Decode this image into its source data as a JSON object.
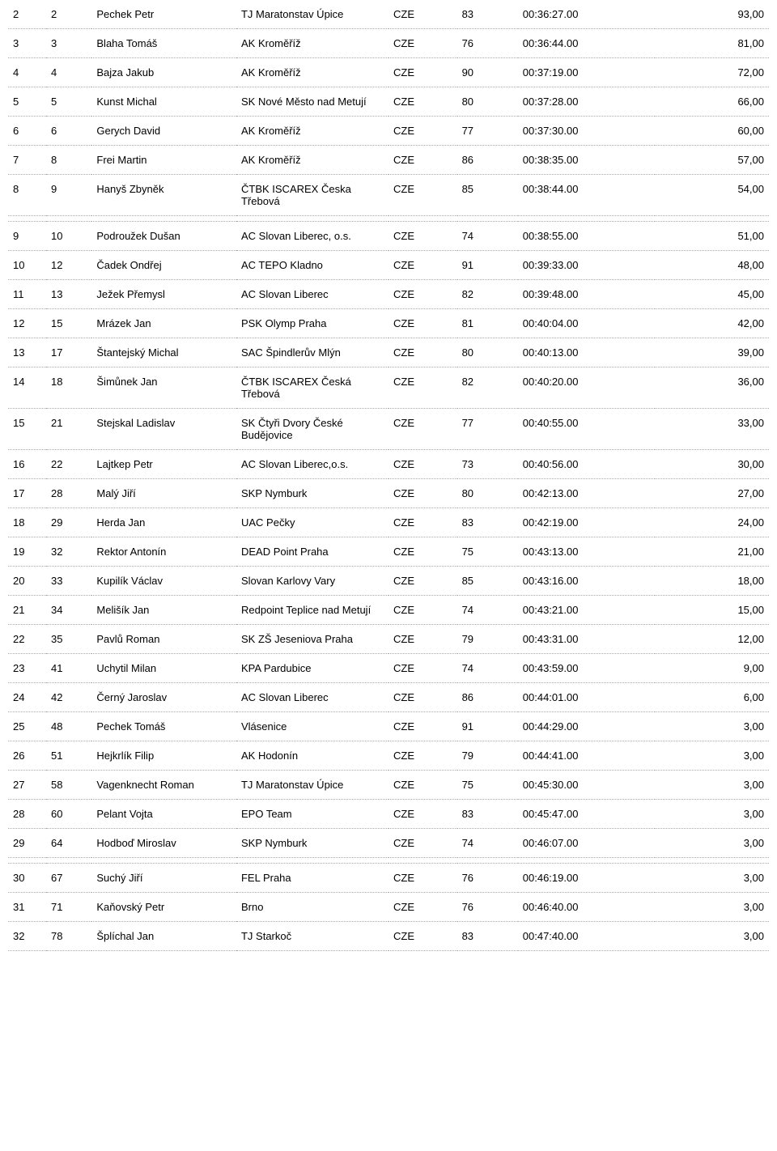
{
  "table": {
    "columns": [
      "pos",
      "num",
      "name",
      "team",
      "nat",
      "yr",
      "time",
      "pts"
    ],
    "rows": [
      {
        "pos": "2",
        "num": "2",
        "name": "Pechek Petr",
        "team": "TJ Maratonstav Úpice",
        "nat": "CZE",
        "yr": "83",
        "time": "00:36:27.00",
        "pts": "93,00"
      },
      {
        "pos": "3",
        "num": "3",
        "name": "Blaha Tomáš",
        "team": "AK Kroměříž",
        "nat": "CZE",
        "yr": "76",
        "time": "00:36:44.00",
        "pts": "81,00"
      },
      {
        "pos": "4",
        "num": "4",
        "name": "Bajza Jakub",
        "team": "AK Kroměříž",
        "nat": "CZE",
        "yr": "90",
        "time": "00:37:19.00",
        "pts": "72,00"
      },
      {
        "pos": "5",
        "num": "5",
        "name": "Kunst Michal",
        "team": "SK Nové Město nad Metují",
        "nat": "CZE",
        "yr": "80",
        "time": "00:37:28.00",
        "pts": "66,00"
      },
      {
        "pos": "6",
        "num": "6",
        "name": "Gerych David",
        "team": "AK Kroměříž",
        "nat": "CZE",
        "yr": "77",
        "time": "00:37:30.00",
        "pts": "60,00"
      },
      {
        "pos": "7",
        "num": "8",
        "name": "Frei Martin",
        "team": "AK Kroměříž",
        "nat": "CZE",
        "yr": "86",
        "time": "00:38:35.00",
        "pts": "57,00"
      },
      {
        "pos": "8",
        "num": "9",
        "name": "Hanyš Zbyněk",
        "team": "ČTBK ISCAREX Česka Třebová",
        "nat": "CZE",
        "yr": "85",
        "time": "00:38:44.00",
        "pts": "54,00"
      },
      {
        "pos": "9",
        "num": "10",
        "name": "Podroužek Dušan",
        "team": "AC Slovan Liberec, o.s.",
        "nat": "CZE",
        "yr": "74",
        "time": "00:38:55.00",
        "pts": "51,00",
        "block": true
      },
      {
        "pos": "10",
        "num": "12",
        "name": "Čadek Ondřej",
        "team": "AC TEPO Kladno",
        "nat": "CZE",
        "yr": "91",
        "time": "00:39:33.00",
        "pts": "48,00"
      },
      {
        "pos": "11",
        "num": "13",
        "name": "Ježek Přemysl",
        "team": "AC Slovan Liberec",
        "nat": "CZE",
        "yr": "82",
        "time": "00:39:48.00",
        "pts": "45,00"
      },
      {
        "pos": "12",
        "num": "15",
        "name": "Mrázek Jan",
        "team": "PSK Olymp Praha",
        "nat": "CZE",
        "yr": "81",
        "time": "00:40:04.00",
        "pts": "42,00"
      },
      {
        "pos": "13",
        "num": "17",
        "name": "Štantejský Michal",
        "team": "SAC Špindlerův Mlýn",
        "nat": "CZE",
        "yr": "80",
        "time": "00:40:13.00",
        "pts": "39,00"
      },
      {
        "pos": "14",
        "num": "18",
        "name": "Šimůnek Jan",
        "team": "ČTBK ISCAREX Česká Třebová",
        "nat": "CZE",
        "yr": "82",
        "time": "00:40:20.00",
        "pts": "36,00"
      },
      {
        "pos": "15",
        "num": "21",
        "name": "Stejskal Ladislav",
        "team": "SK Čtyři Dvory České Budějovice",
        "nat": "CZE",
        "yr": "77",
        "time": "00:40:55.00",
        "pts": "33,00"
      },
      {
        "pos": "16",
        "num": "22",
        "name": "Lajtkep Petr",
        "team": "AC Slovan Liberec,o.s.",
        "nat": "CZE",
        "yr": "73",
        "time": "00:40:56.00",
        "pts": "30,00"
      },
      {
        "pos": "17",
        "num": "28",
        "name": "Malý Jiří",
        "team": "SKP Nymburk",
        "nat": "CZE",
        "yr": "80",
        "time": "00:42:13.00",
        "pts": "27,00"
      },
      {
        "pos": "18",
        "num": "29",
        "name": "Herda Jan",
        "team": "UAC Pečky",
        "nat": "CZE",
        "yr": "83",
        "time": "00:42:19.00",
        "pts": "24,00"
      },
      {
        "pos": "19",
        "num": "32",
        "name": "Rektor Antonín",
        "team": "DEAD Point Praha",
        "nat": "CZE",
        "yr": "75",
        "time": "00:43:13.00",
        "pts": "21,00"
      },
      {
        "pos": "20",
        "num": "33",
        "name": "Kupilík Václav",
        "team": "Slovan Karlovy Vary",
        "nat": "CZE",
        "yr": "85",
        "time": "00:43:16.00",
        "pts": "18,00"
      },
      {
        "pos": "21",
        "num": "34",
        "name": "Melišík Jan",
        "team": "Redpoint Teplice nad Metují",
        "nat": "CZE",
        "yr": "74",
        "time": "00:43:21.00",
        "pts": "15,00"
      },
      {
        "pos": "22",
        "num": "35",
        "name": "Pavlů Roman",
        "team": "SK ZŠ Jeseniova Praha",
        "nat": "CZE",
        "yr": "79",
        "time": "00:43:31.00",
        "pts": "12,00"
      },
      {
        "pos": "23",
        "num": "41",
        "name": "Uchytil Milan",
        "team": "KPA Pardubice",
        "nat": "CZE",
        "yr": "74",
        "time": "00:43:59.00",
        "pts": "9,00"
      },
      {
        "pos": "24",
        "num": "42",
        "name": "Černý Jaroslav",
        "team": "AC Slovan Liberec",
        "nat": "CZE",
        "yr": "86",
        "time": "00:44:01.00",
        "pts": "6,00"
      },
      {
        "pos": "25",
        "num": "48",
        "name": "Pechek Tomáš",
        "team": "Vlásenice",
        "nat": "CZE",
        "yr": "91",
        "time": "00:44:29.00",
        "pts": "3,00"
      },
      {
        "pos": "26",
        "num": "51",
        "name": "Hejkrlík Filip",
        "team": "AK Hodonín",
        "nat": "CZE",
        "yr": "79",
        "time": "00:44:41.00",
        "pts": "3,00"
      },
      {
        "pos": "27",
        "num": "58",
        "name": "Vagenknecht Roman",
        "team": "TJ Maratonstav Úpice",
        "nat": "CZE",
        "yr": "75",
        "time": "00:45:30.00",
        "pts": "3,00"
      },
      {
        "pos": "28",
        "num": "60",
        "name": "Pelant Vojta",
        "team": "EPO Team",
        "nat": "CZE",
        "yr": "83",
        "time": "00:45:47.00",
        "pts": "3,00"
      },
      {
        "pos": "29",
        "num": "64",
        "name": "Hodboď Miroslav",
        "team": "SKP Nymburk",
        "nat": "CZE",
        "yr": "74",
        "time": "00:46:07.00",
        "pts": "3,00"
      },
      {
        "pos": "30",
        "num": "67",
        "name": "Suchý Jiří",
        "team": "FEL Praha",
        "nat": "CZE",
        "yr": "76",
        "time": "00:46:19.00",
        "pts": "3,00",
        "block": true
      },
      {
        "pos": "31",
        "num": "71",
        "name": "Kaňovský Petr",
        "team": "Brno",
        "nat": "CZE",
        "yr": "76",
        "time": "00:46:40.00",
        "pts": "3,00"
      },
      {
        "pos": "32",
        "num": "78",
        "name": "Šplíchal Jan",
        "team": "TJ Starkoč",
        "nat": "CZE",
        "yr": "83",
        "time": "00:47:40.00",
        "pts": "3,00"
      }
    ]
  }
}
